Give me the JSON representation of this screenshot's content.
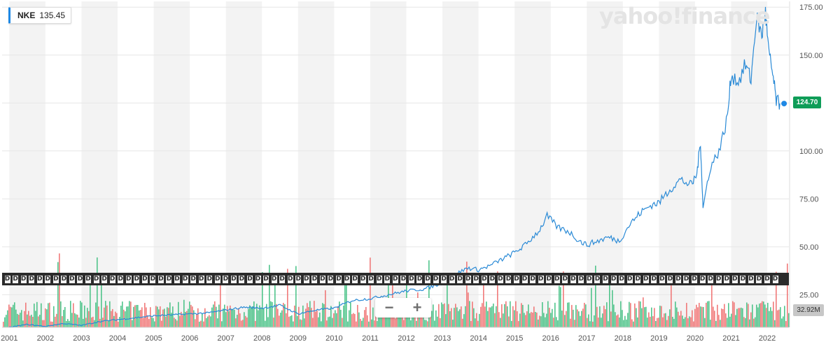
{
  "ticker": {
    "symbol": "NKE",
    "price": "135.45"
  },
  "watermark": "yahoo!finance",
  "last_price_label": "124.70",
  "volume_label": "32.92M",
  "dividend_marker": "D",
  "zoom": {
    "minus": "−",
    "plus": "+"
  },
  "colors": {
    "price_line": "#2a8ad6",
    "up_volume": "#3ebf7f",
    "down_volume": "#ef6b6b",
    "last_price": "#0f9d58",
    "band": "#f3f3f3"
  },
  "chart_data": {
    "type": "line",
    "series": [
      {
        "name": "NKE",
        "x": [
          2001.0,
          2001.5,
          2002.0,
          2002.5,
          2003.0,
          2003.5,
          2004.0,
          2004.5,
          2005.0,
          2005.5,
          2006.0,
          2006.5,
          2007.0,
          2007.5,
          2008.0,
          2008.5,
          2009.0,
          2009.5,
          2010.0,
          2010.5,
          2011.0,
          2011.5,
          2012.0,
          2012.5,
          2013.0,
          2013.3,
          2013.7,
          2014.0,
          2014.3,
          2014.7,
          2015.0,
          2015.3,
          2015.7,
          2015.9,
          2016.2,
          2016.5,
          2016.8,
          2017.0,
          2017.3,
          2017.6,
          2017.9,
          2018.2,
          2018.5,
          2018.8,
          2019.0,
          2019.3,
          2019.6,
          2019.9,
          2020.05,
          2020.15,
          2020.22,
          2020.4,
          2020.7,
          2020.9,
          2021.0,
          2021.2,
          2021.4,
          2021.55,
          2021.7,
          2021.85,
          2021.95,
          2022.05,
          2022.15,
          2022.25,
          2022.35
        ],
        "values": [
          8,
          9.5,
          8.5,
          10,
          9,
          11,
          12,
          13,
          14,
          14.5,
          15,
          15.5,
          17,
          18.5,
          18,
          19.5,
          15,
          17,
          18,
          22,
          23,
          25,
          27,
          28,
          31,
          35,
          39,
          38,
          40,
          44,
          47,
          51,
          59,
          66,
          60,
          58,
          53,
          51,
          53,
          55,
          53,
          62,
          68,
          72,
          73,
          80,
          85,
          82,
          88,
          105,
          70,
          90,
          102,
          118,
          140,
          136,
          145,
          137,
          170,
          160,
          172,
          150,
          140,
          126,
          124.7
        ]
      }
    ],
    "ylim": [
      8,
      178
    ],
    "yticks": [
      25,
      50,
      75,
      100,
      125,
      150,
      175
    ],
    "ytick_labels": [
      "25.00",
      "50.00",
      "75.00",
      "100.00",
      "",
      "150.00",
      "175.00"
    ],
    "xticks": [
      2001,
      2002,
      2003,
      2004,
      2005,
      2006,
      2007,
      2008,
      2009,
      2010,
      2011,
      2012,
      2013,
      2014,
      2015,
      2016,
      2017,
      2018,
      2019,
      2020,
      2021,
      2022
    ],
    "xtick_labels": [
      "2001",
      "2002",
      "2003",
      "2004",
      "2005",
      "2006",
      "2007",
      "2008",
      "2009",
      "2010",
      "2011",
      "2012",
      "2013",
      "2014",
      "2015",
      "2016",
      "2017",
      "2018",
      "2019",
      "2020",
      "2021",
      "2022"
    ],
    "xlim": [
      2000.8,
      2022.6
    ],
    "grid": true,
    "last_value": 124.7
  }
}
